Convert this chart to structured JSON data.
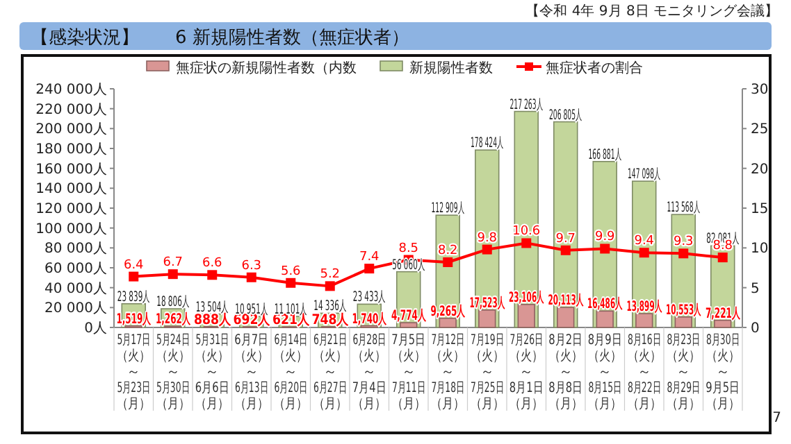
{
  "chart_data": {
    "type": "bar",
    "title": "【感染状況】　　6 新規陽性者数（無症状者）",
    "annotations": [
      "【令和 4年 9月 8日 モニタリング会議】",
      "7"
    ],
    "categories": [
      "5月17日（火）～5月23日（月）",
      "5月24日（火）～5月30日（月）",
      "5月31日（火）～6月6日（月）",
      "6月7日（火）～6月13日（月）",
      "6月14日（火）～6月20日（月）",
      "6月21日（火）～6月27日（月）",
      "6月28日（火）～7月4日（月）",
      "7月5日（火）～7月11日（月）",
      "7月12日（火）～7月18日（月）",
      "7月19日（火）～7月25日（月）",
      "7月26日（火）～8月1日（月）",
      "8月2日（火）～8月8日（月）",
      "8月9日（火）～8月15日（月）",
      "8月16日（火）～8月22日（月）",
      "8月23日（火）～8月29日（月）",
      "8月30日（火）～9月5日（月）"
    ],
    "series": [
      {
        "name": "無症状の新規陽性者数（内数",
        "type": "bar",
        "color": "#d99694",
        "values": [
          1519,
          1262,
          888,
          692,
          621,
          748,
          1740,
          4774,
          9265,
          17523,
          23106,
          20113,
          16486,
          13899,
          10553,
          7221
        ],
        "value_labels": [
          "1,519人",
          "1,262人",
          "888人",
          "692人",
          "621人",
          "748人",
          "1,740人",
          "4,774人",
          "9,265人",
          "17,523人",
          "23,106人",
          "20,113人",
          "16,486人",
          "13,899人",
          "10,553人",
          "7,221人"
        ]
      },
      {
        "name": "新規陽性者数",
        "type": "bar",
        "color": "#c3d69b",
        "values": [
          23839,
          18806,
          13504,
          10951,
          11101,
          14336,
          23433,
          56060,
          112909,
          178424,
          217263,
          206805,
          166881,
          147098,
          113568,
          82081
        ],
        "value_labels": [
          "23 839人",
          "18 806人",
          "13 504人",
          "10 951人",
          "11 101人",
          "14 336人",
          "23 433人",
          "56 060人",
          "112 909人",
          "178 424人",
          "217 263人",
          "206 805人",
          "166 881人",
          "147 098人",
          "113 568人",
          "82 081人"
        ]
      },
      {
        "name": "無症状者の割合",
        "type": "line",
        "axis": "y2",
        "color": "#ff0000",
        "marker": "square",
        "values": [
          6.4,
          6.7,
          6.6,
          6.3,
          5.6,
          5.2,
          7.4,
          8.5,
          8.2,
          9.8,
          10.6,
          9.7,
          9.9,
          9.4,
          9.3,
          8.8
        ],
        "value_labels": [
          "6.4",
          "6.7",
          "6.6",
          "6.3",
          "5.6",
          "5.2",
          "7.4",
          "8.5",
          "8.2",
          "9.8",
          "10.6",
          "9.7",
          "9.9",
          "9.4",
          "9.3",
          "8.8"
        ]
      }
    ],
    "ylim": [
      0,
      240000
    ],
    "yticks": [
      {
        "value": 0,
        "label": "0人"
      },
      {
        "value": 20000,
        "label": "20 000人"
      },
      {
        "value": 40000,
        "label": "40 000人"
      },
      {
        "value": 60000,
        "label": "60 000人"
      },
      {
        "value": 80000,
        "label": "80 000人"
      },
      {
        "value": 100000,
        "label": "100 000人"
      },
      {
        "value": 120000,
        "label": "120 000人"
      },
      {
        "value": 140000,
        "label": "140 000人"
      },
      {
        "value": 160000,
        "label": "160 000人"
      },
      {
        "value": 180000,
        "label": "180 000人"
      },
      {
        "value": 200000,
        "label": "200 000人"
      },
      {
        "value": 220000,
        "label": "220 000人"
      },
      {
        "value": 240000,
        "label": "240 000人"
      }
    ],
    "y2lim": [
      0,
      30
    ],
    "y2ticks": [
      0,
      5,
      10,
      15,
      20,
      25,
      30
    ],
    "legend": "top",
    "grid": false
  }
}
